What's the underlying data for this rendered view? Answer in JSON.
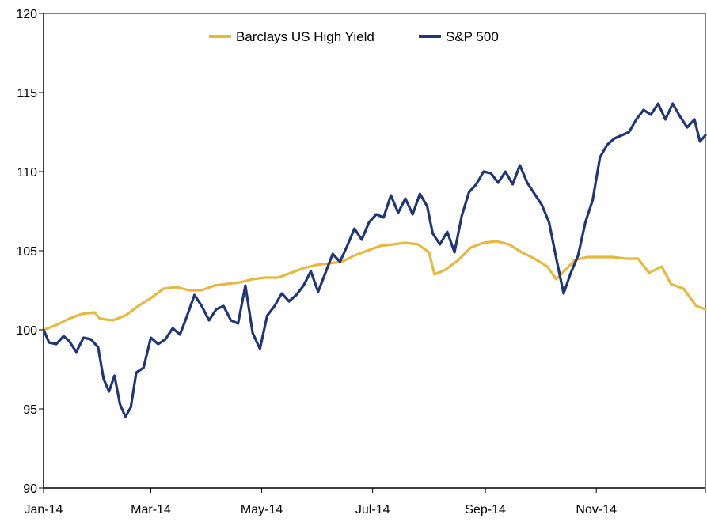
{
  "colors": {
    "hy": "#E8B83E",
    "spx": "#1F3777",
    "axis": "#000000"
  },
  "chart_data": {
    "type": "line",
    "title": "",
    "xlabel": "",
    "ylabel": "",
    "ylim": [
      90,
      120
    ],
    "yticks": [
      90,
      95,
      100,
      105,
      110,
      115,
      120
    ],
    "xlim": [
      "2014-01-01",
      "2014-12-31"
    ],
    "xticks": [
      {
        "label": "Jan-14",
        "date": "2014-01-01"
      },
      {
        "label": "Mar-14",
        "date": "2014-03-01"
      },
      {
        "label": "May-14",
        "date": "2014-05-01"
      },
      {
        "label": "Jul-14",
        "date": "2014-07-01"
      },
      {
        "label": "Sep-14",
        "date": "2014-09-01"
      },
      {
        "label": "Nov-14",
        "date": "2014-11-01"
      }
    ],
    "legend": {
      "position": "top-center"
    },
    "grid": false,
    "series": [
      {
        "name": "Barclays US High Yield",
        "color": "#E8B83E",
        "points": [
          [
            "2014-01-01",
            100.0
          ],
          [
            "2014-01-08",
            100.3
          ],
          [
            "2014-01-15",
            100.7
          ],
          [
            "2014-01-22",
            101.0
          ],
          [
            "2014-01-29",
            101.1
          ],
          [
            "2014-02-01",
            100.7
          ],
          [
            "2014-02-08",
            100.6
          ],
          [
            "2014-02-15",
            100.9
          ],
          [
            "2014-02-22",
            101.5
          ],
          [
            "2014-03-01",
            102.0
          ],
          [
            "2014-03-08",
            102.6
          ],
          [
            "2014-03-15",
            102.7
          ],
          [
            "2014-03-22",
            102.5
          ],
          [
            "2014-03-29",
            102.5
          ],
          [
            "2014-04-05",
            102.8
          ],
          [
            "2014-04-12",
            102.9
          ],
          [
            "2014-04-19",
            103.0
          ],
          [
            "2014-04-26",
            103.2
          ],
          [
            "2014-05-03",
            103.3
          ],
          [
            "2014-05-10",
            103.3
          ],
          [
            "2014-05-17",
            103.6
          ],
          [
            "2014-05-24",
            103.9
          ],
          [
            "2014-05-31",
            104.1
          ],
          [
            "2014-06-07",
            104.2
          ],
          [
            "2014-06-14",
            104.3
          ],
          [
            "2014-06-21",
            104.7
          ],
          [
            "2014-06-28",
            105.0
          ],
          [
            "2014-07-05",
            105.3
          ],
          [
            "2014-07-12",
            105.4
          ],
          [
            "2014-07-19",
            105.5
          ],
          [
            "2014-07-26",
            105.4
          ],
          [
            "2014-08-01",
            104.9
          ],
          [
            "2014-08-04",
            103.5
          ],
          [
            "2014-08-10",
            103.8
          ],
          [
            "2014-08-17",
            104.4
          ],
          [
            "2014-08-24",
            105.2
          ],
          [
            "2014-08-31",
            105.5
          ],
          [
            "2014-09-07",
            105.6
          ],
          [
            "2014-09-14",
            105.4
          ],
          [
            "2014-09-21",
            104.9
          ],
          [
            "2014-09-28",
            104.5
          ],
          [
            "2014-10-05",
            104.0
          ],
          [
            "2014-10-10",
            103.2
          ],
          [
            "2014-10-16",
            103.9
          ],
          [
            "2014-10-20",
            104.4
          ],
          [
            "2014-10-27",
            104.6
          ],
          [
            "2014-11-03",
            104.6
          ],
          [
            "2014-11-10",
            104.6
          ],
          [
            "2014-11-17",
            104.5
          ],
          [
            "2014-11-24",
            104.5
          ],
          [
            "2014-11-30",
            103.6
          ],
          [
            "2014-12-07",
            104.0
          ],
          [
            "2014-12-12",
            102.9
          ],
          [
            "2014-12-19",
            102.6
          ],
          [
            "2014-12-26",
            101.5
          ],
          [
            "2014-12-31",
            101.3
          ]
        ]
      },
      {
        "name": "S&P 500",
        "color": "#1F3777",
        "points": [
          [
            "2014-01-01",
            100.0
          ],
          [
            "2014-01-04",
            99.2
          ],
          [
            "2014-01-08",
            99.1
          ],
          [
            "2014-01-12",
            99.6
          ],
          [
            "2014-01-15",
            99.3
          ],
          [
            "2014-01-19",
            98.6
          ],
          [
            "2014-01-23",
            99.5
          ],
          [
            "2014-01-27",
            99.4
          ],
          [
            "2014-01-31",
            98.9
          ],
          [
            "2014-02-03",
            96.9
          ],
          [
            "2014-02-06",
            96.1
          ],
          [
            "2014-02-09",
            97.1
          ],
          [
            "2014-02-12",
            95.3
          ],
          [
            "2014-02-15",
            94.5
          ],
          [
            "2014-02-18",
            95.1
          ],
          [
            "2014-02-21",
            97.3
          ],
          [
            "2014-02-25",
            97.6
          ],
          [
            "2014-03-01",
            99.5
          ],
          [
            "2014-03-05",
            99.1
          ],
          [
            "2014-03-09",
            99.4
          ],
          [
            "2014-03-13",
            100.1
          ],
          [
            "2014-03-17",
            99.7
          ],
          [
            "2014-03-21",
            100.9
          ],
          [
            "2014-03-25",
            102.2
          ],
          [
            "2014-03-29",
            101.5
          ],
          [
            "2014-04-02",
            100.6
          ],
          [
            "2014-04-06",
            101.3
          ],
          [
            "2014-04-10",
            101.5
          ],
          [
            "2014-04-14",
            100.6
          ],
          [
            "2014-04-18",
            100.4
          ],
          [
            "2014-04-22",
            102.8
          ],
          [
            "2014-04-26",
            99.8
          ],
          [
            "2014-04-30",
            98.8
          ],
          [
            "2014-05-04",
            100.9
          ],
          [
            "2014-05-08",
            101.5
          ],
          [
            "2014-05-12",
            102.3
          ],
          [
            "2014-05-16",
            101.8
          ],
          [
            "2014-05-20",
            102.2
          ],
          [
            "2014-05-24",
            102.8
          ],
          [
            "2014-05-28",
            103.7
          ],
          [
            "2014-06-01",
            102.4
          ],
          [
            "2014-06-05",
            103.6
          ],
          [
            "2014-06-09",
            104.8
          ],
          [
            "2014-06-13",
            104.3
          ],
          [
            "2014-06-17",
            105.3
          ],
          [
            "2014-06-21",
            106.4
          ],
          [
            "2014-06-25",
            105.7
          ],
          [
            "2014-06-29",
            106.8
          ],
          [
            "2014-07-03",
            107.3
          ],
          [
            "2014-07-07",
            107.1
          ],
          [
            "2014-07-11",
            108.5
          ],
          [
            "2014-07-15",
            107.4
          ],
          [
            "2014-07-19",
            108.3
          ],
          [
            "2014-07-23",
            107.3
          ],
          [
            "2014-07-27",
            108.6
          ],
          [
            "2014-07-31",
            107.8
          ],
          [
            "2014-08-03",
            106.1
          ],
          [
            "2014-08-07",
            105.4
          ],
          [
            "2014-08-11",
            106.2
          ],
          [
            "2014-08-15",
            104.9
          ],
          [
            "2014-08-19",
            107.2
          ],
          [
            "2014-08-23",
            108.7
          ],
          [
            "2014-08-27",
            109.2
          ],
          [
            "2014-08-31",
            110.0
          ],
          [
            "2014-09-04",
            109.9
          ],
          [
            "2014-09-08",
            109.3
          ],
          [
            "2014-09-12",
            110.0
          ],
          [
            "2014-09-16",
            109.2
          ],
          [
            "2014-09-20",
            110.4
          ],
          [
            "2014-09-24",
            109.3
          ],
          [
            "2014-09-28",
            108.6
          ],
          [
            "2014-10-02",
            107.9
          ],
          [
            "2014-10-06",
            106.8
          ],
          [
            "2014-10-10",
            104.5
          ],
          [
            "2014-10-14",
            102.3
          ],
          [
            "2014-10-18",
            103.6
          ],
          [
            "2014-10-22",
            104.7
          ],
          [
            "2014-10-26",
            106.8
          ],
          [
            "2014-10-30",
            108.2
          ],
          [
            "2014-11-03",
            110.9
          ],
          [
            "2014-11-07",
            111.7
          ],
          [
            "2014-11-11",
            112.1
          ],
          [
            "2014-11-15",
            112.3
          ],
          [
            "2014-11-19",
            112.5
          ],
          [
            "2014-11-23",
            113.3
          ],
          [
            "2014-11-27",
            113.9
          ],
          [
            "2014-12-01",
            113.6
          ],
          [
            "2014-12-05",
            114.3
          ],
          [
            "2014-12-09",
            113.3
          ],
          [
            "2014-12-13",
            114.3
          ],
          [
            "2014-12-17",
            113.5
          ],
          [
            "2014-12-21",
            112.8
          ],
          [
            "2014-12-25",
            113.3
          ],
          [
            "2014-12-28",
            111.9
          ],
          [
            "2014-12-31",
            112.3
          ]
        ]
      }
    ]
  }
}
